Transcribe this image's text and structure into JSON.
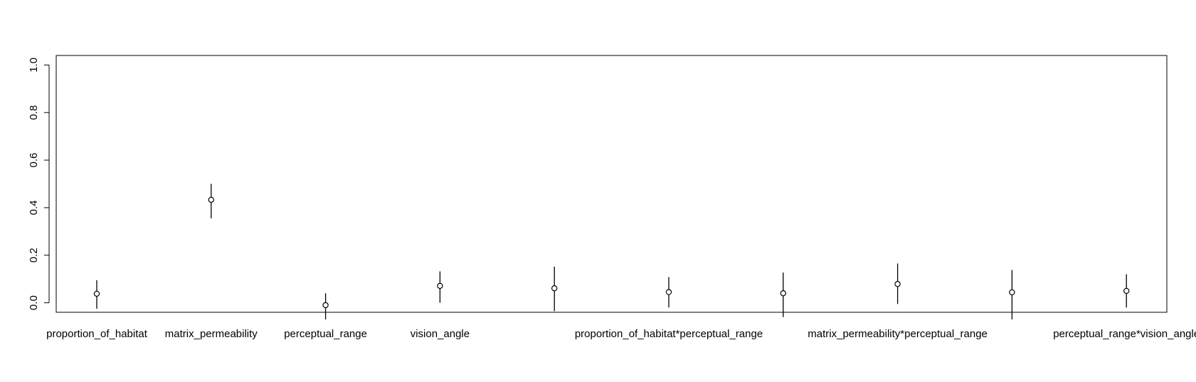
{
  "chart_data": {
    "type": "scatter",
    "title": "",
    "xlabel": "",
    "ylabel": "",
    "ylim": [
      -0.04,
      1.04
    ],
    "yticks": [
      0.0,
      0.2,
      0.4,
      0.6,
      0.8,
      1.0
    ],
    "ytick_labels": [
      "0.0",
      "0.2",
      "0.4",
      "0.6",
      "0.8",
      "1.0"
    ],
    "grid": false,
    "legend": "none",
    "categories": [
      "proportion_of_habitat",
      "matrix_permeability",
      "perceptual_range",
      "vision_angle",
      "",
      "proportion_of_habitat*perceptual_range",
      "",
      "matrix_permeability*perceptual_range",
      "",
      "perceptual_range*vision_angle"
    ],
    "series": [
      {
        "values": [
          0.038,
          0.433,
          -0.01,
          0.071,
          0.061,
          0.045,
          0.04,
          0.079,
          0.044,
          0.05
        ],
        "lower": [
          -0.025,
          0.355,
          -0.07,
          0.0,
          -0.035,
          -0.02,
          -0.06,
          -0.005,
          -0.07,
          -0.02
        ],
        "upper": [
          0.095,
          0.5,
          0.04,
          0.132,
          0.152,
          0.108,
          0.127,
          0.165,
          0.138,
          0.12
        ]
      }
    ],
    "colors": {
      "axis": "#000000",
      "marker_fill": "#ffffff",
      "marker_stroke": "#000000",
      "errorbar": "#000000"
    }
  }
}
